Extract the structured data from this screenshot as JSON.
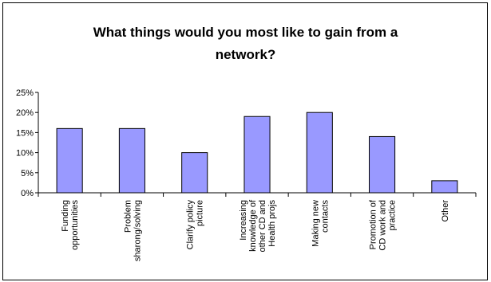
{
  "chart_data": {
    "type": "bar",
    "title": "What things would you most like to gain from a\nnetwork?",
    "categories": [
      [
        "Funding",
        "opportunities"
      ],
      [
        "Problem",
        "sharong/solving"
      ],
      [
        "Clarify policy",
        "picture"
      ],
      [
        "Increasing",
        "knowledge of",
        "other CD and",
        "Health projs"
      ],
      [
        "Making new",
        "contacts"
      ],
      [
        "Promotion of",
        "CD work and",
        "practice"
      ],
      [
        "Other"
      ]
    ],
    "values": [
      16,
      16,
      10,
      19,
      20,
      14,
      3
    ],
    "yticks": [
      "0%",
      "5%",
      "10%",
      "15%",
      "20%",
      "25%"
    ],
    "ylim": [
      0,
      25
    ],
    "xlabel": "",
    "ylabel": "",
    "grid": false,
    "legend": "none",
    "bar_color": "#9999ff",
    "bar_edge_color": "#000000"
  }
}
